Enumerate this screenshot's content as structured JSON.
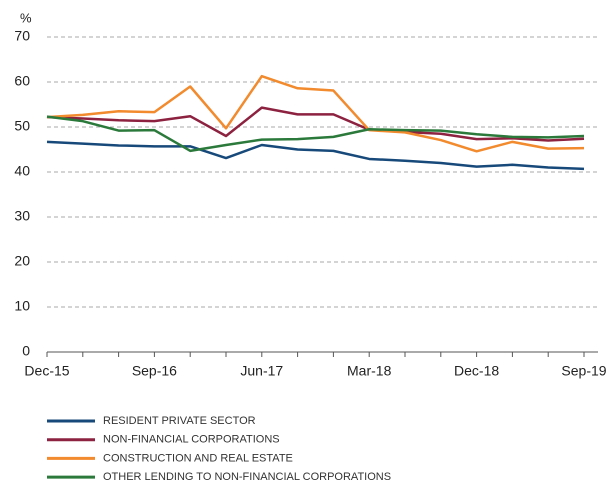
{
  "chart_data": {
    "type": "line",
    "y_unit": "%",
    "categories": [
      "Dec-15",
      null,
      null,
      "Sep-16",
      null,
      null,
      "Jun-17",
      null,
      null,
      "Mar-18",
      null,
      null,
      "Dec-18",
      null,
      null,
      "Sep-19"
    ],
    "series": [
      {
        "name": "RESIDENT PRIVATE SECTOR",
        "color": "#17497a",
        "values": [
          46.7,
          46.3,
          45.9,
          45.7,
          45.7,
          43.1,
          46.0,
          45.0,
          44.7,
          42.9,
          42.5,
          42.0,
          41.2,
          41.6,
          41.0,
          40.7
        ]
      },
      {
        "name": "NON-FINANCIAL CORPORATIONS",
        "color": "#8c2240",
        "values": [
          52.2,
          51.9,
          51.5,
          51.3,
          52.4,
          48.0,
          54.3,
          52.8,
          52.8,
          49.4,
          48.9,
          48.5,
          47.3,
          47.5,
          47.0,
          47.4
        ]
      },
      {
        "name": "CONSTRUCTION AND REAL ESTATE",
        "color": "#f28a2e",
        "values": [
          52.2,
          52.7,
          53.5,
          53.3,
          59.0,
          49.7,
          61.3,
          58.6,
          58.1,
          49.3,
          48.8,
          47.1,
          44.6,
          46.7,
          45.2,
          45.3
        ]
      },
      {
        "name": "OTHER LENDING TO NON-FINANCIAL CORPORATIONS",
        "color": "#2b7a3b",
        "values": [
          52.3,
          51.3,
          49.2,
          49.3,
          44.7,
          46.0,
          47.2,
          47.3,
          47.8,
          49.5,
          49.3,
          49.2,
          48.4,
          47.8,
          47.7,
          48.0
        ]
      }
    ],
    "ylim": [
      0,
      70
    ],
    "yticks": [
      0,
      10,
      20,
      30,
      40,
      50,
      60,
      70
    ],
    "grid": true
  }
}
